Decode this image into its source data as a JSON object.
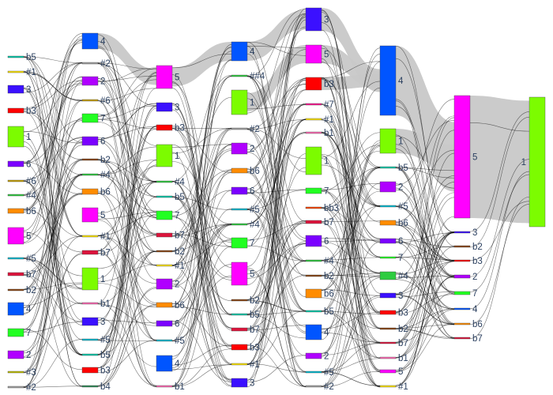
{
  "colors": {
    "link": "#000000",
    "link_heavy": "#c8c8c8",
    "node_stroke": "#444444",
    "label": "#2a3f5f"
  },
  "columns": [
    {
      "nodes": [
        {
          "id": "c0-b5",
          "label": "b5",
          "y0": 71,
          "y1": 73,
          "color": "#00ccaa"
        },
        {
          "id": "c0-h1",
          "label": "#1",
          "y0": 90,
          "y1": 92,
          "color": "#ffe600"
        },
        {
          "id": "c0-3",
          "label": "3",
          "y0": 108,
          "y1": 118,
          "color": "#3b10ff"
        },
        {
          "id": "c0-b3",
          "label": "b3",
          "y0": 137,
          "y1": 143,
          "color": "#ff0000"
        },
        {
          "id": "c0-1",
          "label": "1",
          "y0": 160,
          "y1": 186,
          "color": "#7cfc00"
        },
        {
          "id": "c0-6",
          "label": "6",
          "y0": 204,
          "y1": 211,
          "color": "#7b00ff"
        },
        {
          "id": "c0-h6",
          "label": "#6",
          "y0": 228,
          "y1": 230,
          "color": "#c8a000"
        },
        {
          "id": "c0-h4",
          "label": "#4",
          "y0": 246,
          "y1": 248,
          "color": "#2ecc40"
        },
        {
          "id": "c0-b6",
          "label": "b6",
          "y0": 264,
          "y1": 270,
          "color": "#ff8c00"
        },
        {
          "id": "c0-5",
          "label": "5",
          "y0": 288,
          "y1": 309,
          "color": "#ff00ff"
        },
        {
          "id": "c0-h5",
          "label": "#5",
          "y0": 326,
          "y1": 328,
          "color": "#00bcd4"
        },
        {
          "id": "c0-b7",
          "label": "b7",
          "y0": 345,
          "y1": 349,
          "color": "#dc143c"
        },
        {
          "id": "c0-b2",
          "label": "b2",
          "y0": 366,
          "y1": 368,
          "color": "#8b4513"
        },
        {
          "id": "c0-4",
          "label": "4",
          "y0": 383,
          "y1": 399,
          "color": "#0055ff"
        },
        {
          "id": "c0-7",
          "label": "7",
          "y0": 416,
          "y1": 426,
          "color": "#22ff22"
        },
        {
          "id": "c0-2",
          "label": "2",
          "y0": 444,
          "y1": 454,
          "color": "#b000ff"
        },
        {
          "id": "c0-h3",
          "label": "#3",
          "y0": 470,
          "y1": 472,
          "color": "#c0c000"
        },
        {
          "id": "c0-h2",
          "label": "#2",
          "y0": 489,
          "y1": 491,
          "color": "#a0a0a0"
        }
      ]
    },
    {
      "nodes": [
        {
          "id": "c1-4",
          "label": "4",
          "y0": 42,
          "y1": 62,
          "color": "#0055ff"
        },
        {
          "id": "c1-h2",
          "label": "#2",
          "y0": 79,
          "y1": 81,
          "color": "#a0a0a0"
        },
        {
          "id": "c1-2",
          "label": "2",
          "y0": 97,
          "y1": 108,
          "color": "#b000ff"
        },
        {
          "id": "c1-h6",
          "label": "#6",
          "y0": 126,
          "y1": 128,
          "color": "#c8a000"
        },
        {
          "id": "c1-7",
          "label": "7",
          "y0": 144,
          "y1": 155,
          "color": "#22ff22"
        },
        {
          "id": "c1-6",
          "label": "6",
          "y0": 173,
          "y1": 184,
          "color": "#7b00ff"
        },
        {
          "id": "c1-b2",
          "label": "b2",
          "y0": 201,
          "y1": 203,
          "color": "#8b4513"
        },
        {
          "id": "c1-h4",
          "label": "#4",
          "y0": 220,
          "y1": 222,
          "color": "#2ecc40"
        },
        {
          "id": "c1-b6",
          "label": "b6",
          "y0": 239,
          "y1": 246,
          "color": "#ff8c00"
        },
        {
          "id": "c1-5",
          "label": "5",
          "y0": 263,
          "y1": 281,
          "color": "#ff00ff"
        },
        {
          "id": "c1-h1",
          "label": "#1",
          "y0": 298,
          "y1": 300,
          "color": "#ffe600"
        },
        {
          "id": "c1-b7",
          "label": "b7",
          "y0": 317,
          "y1": 322,
          "color": "#dc143c"
        },
        {
          "id": "c1-1",
          "label": "1",
          "y0": 339,
          "y1": 367,
          "color": "#7cfc00"
        },
        {
          "id": "c1-b1",
          "label": "b1",
          "y0": 383,
          "y1": 385,
          "color": "#ff69b4"
        },
        {
          "id": "c1-3",
          "label": "3",
          "y0": 402,
          "y1": 412,
          "color": "#3b10ff"
        },
        {
          "id": "c1-h5",
          "label": "#5",
          "y0": 429,
          "y1": 431,
          "color": "#00bcd4"
        },
        {
          "id": "c1-b5",
          "label": "b5",
          "y0": 448,
          "y1": 450,
          "color": "#00ccaa"
        },
        {
          "id": "c1-b3",
          "label": "b3",
          "y0": 465,
          "y1": 472,
          "color": "#ff0000"
        },
        {
          "id": "c1-b4",
          "label": "b4",
          "y0": 488,
          "y1": 490,
          "color": "#2e8b57"
        }
      ]
    },
    {
      "nodes": [
        {
          "id": "c2-5",
          "label": "5",
          "y0": 83,
          "y1": 112,
          "color": "#ff00ff"
        },
        {
          "id": "c2-3",
          "label": "3",
          "y0": 130,
          "y1": 141,
          "color": "#3b10ff"
        },
        {
          "id": "c2-b3",
          "label": "b3",
          "y0": 158,
          "y1": 165,
          "color": "#ff0000"
        },
        {
          "id": "c2-1",
          "label": "1",
          "y0": 183,
          "y1": 211,
          "color": "#7cfc00"
        },
        {
          "id": "c2-h4",
          "label": "#4",
          "y0": 229,
          "y1": 231,
          "color": "#2ecc40"
        },
        {
          "id": "c2-b5",
          "label": "b5",
          "y0": 248,
          "y1": 250,
          "color": "#00ccaa"
        },
        {
          "id": "c2-7",
          "label": "7",
          "y0": 267,
          "y1": 278,
          "color": "#22ff22"
        },
        {
          "id": "c2-b7",
          "label": "b7",
          "y0": 295,
          "y1": 300,
          "color": "#dc143c"
        },
        {
          "id": "c2-b2",
          "label": "b2",
          "y0": 317,
          "y1": 319,
          "color": "#8b4513"
        },
        {
          "id": "c2-h1",
          "label": "#1",
          "y0": 335,
          "y1": 337,
          "color": "#ffe600"
        },
        {
          "id": "c2-2",
          "label": "2",
          "y0": 353,
          "y1": 366,
          "color": "#b000ff"
        },
        {
          "id": "c2-b6",
          "label": "b6",
          "y0": 383,
          "y1": 389,
          "color": "#ff8c00"
        },
        {
          "id": "c2-6",
          "label": "6",
          "y0": 406,
          "y1": 413,
          "color": "#7b00ff"
        },
        {
          "id": "c2-h5",
          "label": "#5",
          "y0": 430,
          "y1": 432,
          "color": "#00bcd4"
        },
        {
          "id": "c2-4",
          "label": "4",
          "y0": 450,
          "y1": 470,
          "color": "#0055ff"
        },
        {
          "id": "c2-b1",
          "label": "b1",
          "y0": 488,
          "y1": 490,
          "color": "#ff69b4"
        }
      ]
    },
    {
      "nodes": [
        {
          "id": "c3-4",
          "label": "4",
          "y0": 53,
          "y1": 77,
          "color": "#0055ff"
        },
        {
          "id": "c3-hh4",
          "label": "##4",
          "y0": 95,
          "y1": 97,
          "color": "#2ecc40"
        },
        {
          "id": "c3-1",
          "label": "1",
          "y0": 114,
          "y1": 145,
          "color": "#7cfc00"
        },
        {
          "id": "c3-h2",
          "label": "#2",
          "y0": 162,
          "y1": 164,
          "color": "#a0a0a0"
        },
        {
          "id": "c3-2",
          "label": "2",
          "y0": 181,
          "y1": 195,
          "color": "#b000ff"
        },
        {
          "id": "c3-b6",
          "label": "b6",
          "y0": 213,
          "y1": 219,
          "color": "#ff8c00"
        },
        {
          "id": "c3-6",
          "label": "6",
          "y0": 237,
          "y1": 246,
          "color": "#7b00ff"
        },
        {
          "id": "c3-h5",
          "label": "#5",
          "y0": 264,
          "y1": 266,
          "color": "#00bcd4"
        },
        {
          "id": "c3-h4",
          "label": "#4",
          "y0": 283,
          "y1": 285,
          "color": "#2ecc40"
        },
        {
          "id": "c3-7",
          "label": "7",
          "y0": 301,
          "y1": 314,
          "color": "#22ff22"
        },
        {
          "id": "c3-5",
          "label": "5",
          "y0": 332,
          "y1": 361,
          "color": "#ff00ff"
        },
        {
          "id": "c3-b2",
          "label": "b2",
          "y0": 379,
          "y1": 381,
          "color": "#8b4513"
        },
        {
          "id": "c3-b5",
          "label": "b5",
          "y0": 397,
          "y1": 399,
          "color": "#00ccaa"
        },
        {
          "id": "c3-b7",
          "label": "b7",
          "y0": 415,
          "y1": 419,
          "color": "#dc143c"
        },
        {
          "id": "c3-b3",
          "label": "b3",
          "y0": 436,
          "y1": 443,
          "color": "#ff0000"
        },
        {
          "id": "c3-h1",
          "label": "#1",
          "y0": 460,
          "y1": 462,
          "color": "#ffe600"
        },
        {
          "id": "c3-3",
          "label": "3",
          "y0": 479,
          "y1": 490,
          "color": "#3b10ff"
        }
      ]
    },
    {
      "nodes": [
        {
          "id": "c4-3",
          "label": "3",
          "y0": 10,
          "y1": 39,
          "color": "#3b10ff"
        },
        {
          "id": "c4-5",
          "label": "5",
          "y0": 57,
          "y1": 80,
          "color": "#ff00ff"
        },
        {
          "id": "c4-b3",
          "label": "b3",
          "y0": 98,
          "y1": 114,
          "color": "#ff0000"
        },
        {
          "id": "c4-h7",
          "label": "#7",
          "y0": 131,
          "y1": 133,
          "color": "#ff1493"
        },
        {
          "id": "c4-h1",
          "label": "#1",
          "y0": 150,
          "y1": 152,
          "color": "#ffe600"
        },
        {
          "id": "c4-b1",
          "label": "b1",
          "y0": 167,
          "y1": 169,
          "color": "#ff69b4"
        },
        {
          "id": "c4-1",
          "label": "1",
          "y0": 186,
          "y1": 221,
          "color": "#7cfc00"
        },
        {
          "id": "c4-7",
          "label": "7",
          "y0": 238,
          "y1": 245,
          "color": "#22ff22"
        },
        {
          "id": "c4-bb3",
          "label": "bb3",
          "y0": 262,
          "y1": 264,
          "color": "#ff4500"
        },
        {
          "id": "c4-b7",
          "label": "b7",
          "y0": 279,
          "y1": 283,
          "color": "#dc143c"
        },
        {
          "id": "c4-6",
          "label": "6",
          "y0": 298,
          "y1": 312,
          "color": "#7b00ff"
        },
        {
          "id": "c4-h4",
          "label": "#4",
          "y0": 329,
          "y1": 331,
          "color": "#2ecc40"
        },
        {
          "id": "c4-b2",
          "label": "b2",
          "y0": 348,
          "y1": 350,
          "color": "#8b4513"
        },
        {
          "id": "c4-b6",
          "label": "b6",
          "y0": 366,
          "y1": 377,
          "color": "#ff8c00"
        },
        {
          "id": "c4-b5",
          "label": "b5",
          "y0": 393,
          "y1": 395,
          "color": "#00ccaa"
        },
        {
          "id": "c4-4",
          "label": "4",
          "y0": 411,
          "y1": 430,
          "color": "#0055ff"
        },
        {
          "id": "c4-2",
          "label": "2",
          "y0": 447,
          "y1": 454,
          "color": "#b000ff"
        },
        {
          "id": "c4-h5",
          "label": "#5",
          "y0": 470,
          "y1": 472,
          "color": "#00bcd4"
        },
        {
          "id": "c4-h2",
          "label": "#2",
          "y0": 488,
          "y1": 490,
          "color": "#a0a0a0"
        }
      ]
    },
    {
      "nodes": [
        {
          "id": "c5-4",
          "label": "4",
          "y0": 58,
          "y1": 146,
          "color": "#0055ff"
        },
        {
          "id": "c5-1",
          "label": "1",
          "y0": 163,
          "y1": 194,
          "color": "#7cfc00"
        },
        {
          "id": "c5-b5",
          "label": "b5",
          "y0": 211,
          "y1": 213,
          "color": "#00ccaa"
        },
        {
          "id": "c5-2",
          "label": "2",
          "y0": 230,
          "y1": 243,
          "color": "#b000ff"
        },
        {
          "id": "c5-h5",
          "label": "#5",
          "y0": 260,
          "y1": 262,
          "color": "#00bcd4"
        },
        {
          "id": "c5-b6",
          "label": "b6",
          "y0": 279,
          "y1": 285,
          "color": "#ff8c00"
        },
        {
          "id": "c5-6",
          "label": "6",
          "y0": 302,
          "y1": 308,
          "color": "#7b00ff"
        },
        {
          "id": "c5-7",
          "label": "7",
          "y0": 325,
          "y1": 327,
          "color": "#22ff22"
        },
        {
          "id": "c5-h4",
          "label": "#4",
          "y0": 344,
          "y1": 354,
          "color": "#2ecc40"
        },
        {
          "id": "c5-3",
          "label": "3",
          "y0": 371,
          "y1": 377,
          "color": "#3b10ff"
        },
        {
          "id": "c5-b3",
          "label": "b3",
          "y0": 393,
          "y1": 398,
          "color": "#ff0000"
        },
        {
          "id": "c5-b2",
          "label": "b2",
          "y0": 415,
          "y1": 417,
          "color": "#8b4513"
        },
        {
          "id": "c5-b7",
          "label": "b7",
          "y0": 433,
          "y1": 435,
          "color": "#dc143c"
        },
        {
          "id": "c5-b1",
          "label": "b1",
          "y0": 452,
          "y1": 454,
          "color": "#ff69b4"
        },
        {
          "id": "c5-5",
          "label": "5",
          "y0": 468,
          "y1": 472,
          "color": "#ff00ff"
        },
        {
          "id": "c5-h1",
          "label": "#1",
          "y0": 488,
          "y1": 490,
          "color": "#ffe600"
        }
      ]
    },
    {
      "nodes": [
        {
          "id": "c6-5",
          "label": "5",
          "y0": 121,
          "y1": 276,
          "color": "#ff00ff"
        },
        {
          "id": "c6-3",
          "label": "3",
          "y0": 293,
          "y1": 295,
          "color": "#3b10ff"
        },
        {
          "id": "c6-b2",
          "label": "b2",
          "y0": 311,
          "y1": 313,
          "color": "#8b4513"
        },
        {
          "id": "c6-b3",
          "label": "b3",
          "y0": 329,
          "y1": 331,
          "color": "#ff0000"
        },
        {
          "id": "c6-2",
          "label": "2",
          "y0": 348,
          "y1": 352,
          "color": "#b000ff"
        },
        {
          "id": "c6-7",
          "label": "7",
          "y0": 369,
          "y1": 373,
          "color": "#22ff22"
        },
        {
          "id": "c6-4",
          "label": "4",
          "y0": 390,
          "y1": 392,
          "color": "#0055ff"
        },
        {
          "id": "c6-b6",
          "label": "b6",
          "y0": 409,
          "y1": 411,
          "color": "#ff8c00"
        },
        {
          "id": "c6-b7",
          "label": "b7",
          "y0": 427,
          "y1": 429,
          "color": "#dc143c"
        }
      ]
    },
    {
      "nodes": [
        {
          "id": "c7-1",
          "label": "1",
          "y0": 123,
          "y1": 287,
          "color": "#7cfc00"
        }
      ]
    }
  ],
  "heavy_links": [
    {
      "source": "c6-5",
      "target": "c7-1"
    },
    {
      "source": "c5-4",
      "target": "c6-5"
    },
    {
      "source": "c5-1",
      "target": "c6-5"
    },
    {
      "source": "c4-3",
      "target": "c5-4"
    },
    {
      "source": "c4-5",
      "target": "c5-4"
    },
    {
      "source": "c4-b3",
      "target": "c5-4"
    },
    {
      "source": "c3-4",
      "target": "c4-3"
    },
    {
      "source": "c3-1",
      "target": "c4-5"
    },
    {
      "source": "c2-5",
      "target": "c3-4"
    },
    {
      "source": "c1-4",
      "target": "c2-5"
    }
  ]
}
